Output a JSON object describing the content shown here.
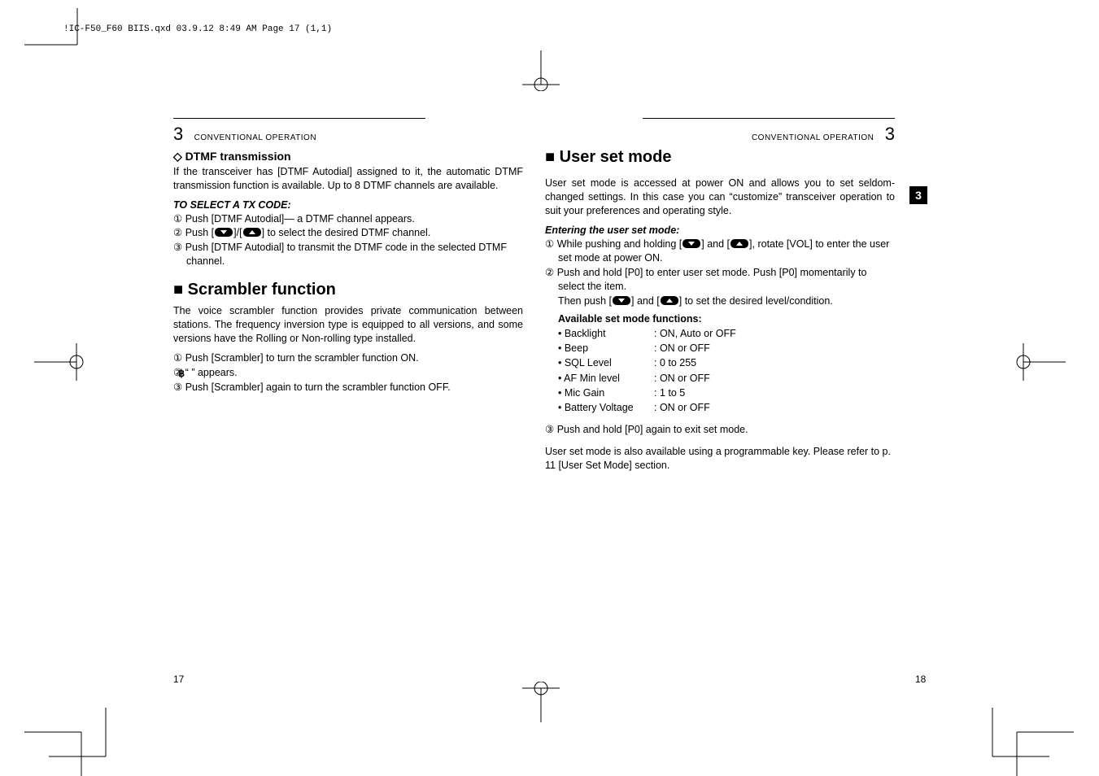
{
  "header": "!IC-F50_F60 BIIS.qxd  03.9.12 8:49 AM  Page 17 (1,1)",
  "left": {
    "chapnum": "3",
    "chaptitle": "CONVENTIONAL OPERATION",
    "dtmf": {
      "heading": "DTMF transmission",
      "intro": "If the transceiver has [DTMF Autodial] assigned to it, the automatic DTMF transmission function is available. Up to 8 DTMF channels are available.",
      "subhead": "TO SELECT A TX CODE:",
      "s1": "Push [DTMF Autodial]— a DTMF channel appears.",
      "s2a": "Push [",
      "s2b": "]/[",
      "s2c": "] to select the desired DTMF channel.",
      "s3": "Push [DTMF Autodial] to transmit the DTMF code in the selected DTMF channel."
    },
    "scrambler": {
      "heading": "Scrambler function",
      "intro": "The voice scrambler function provides private communication between stations. The frequency inversion type is equipped to all versions, and some versions have the Rolling or Non-rolling type installed.",
      "s1": "Push [Scrambler] to turn the scrambler function ON.",
      "s2a": "“ ",
      "s2b": "” appears.",
      "s3": "Push [Scrambler] again to turn the scrambler function OFF."
    },
    "pagenum": "17"
  },
  "right": {
    "chaptitle": "CONVENTIONAL OPERATION",
    "chapnum": "3",
    "tab": "3",
    "usm": {
      "heading": "User set mode",
      "intro": "User set mode is accessed at power ON and allows you to set seldom-changed settings. In this case you can “customize” transceiver operation to suit your preferences and operating style.",
      "subhead": "Entering the user set mode:",
      "s1a": "While pushing and holding [",
      "s1b": "] and [",
      "s1c": "], rotate [VOL] to enter the user set mode at power ON.",
      "s2a": "Push and hold [P0] to enter user set mode. Push [P0] momentarily to select the item.",
      "s2b": "Then push [",
      "s2c": "] and [",
      "s2d": "] to set the desired level/condition.",
      "avail": "Available set mode functions:",
      "funcs": [
        {
          "label": "• Backlight",
          "val": ": ON, Auto or OFF"
        },
        {
          "label": "• Beep",
          "val": ": ON or OFF"
        },
        {
          "label": "• SQL Level",
          "val": ": 0 to 255"
        },
        {
          "label": "• AF Min level",
          "val": ": ON or OFF"
        },
        {
          "label": "• Mic Gain",
          "val": ": 1 to 5"
        },
        {
          "label": "• Battery Voltage",
          "val": ": ON or OFF"
        }
      ],
      "s3": "Push and hold [P0] again to exit set mode.",
      "note": "User set mode is also available using a programmable key. Please refer to p. 11 [User Set Mode] section."
    },
    "pagenum": "18"
  },
  "circled": [
    "①",
    "②",
    "③"
  ]
}
